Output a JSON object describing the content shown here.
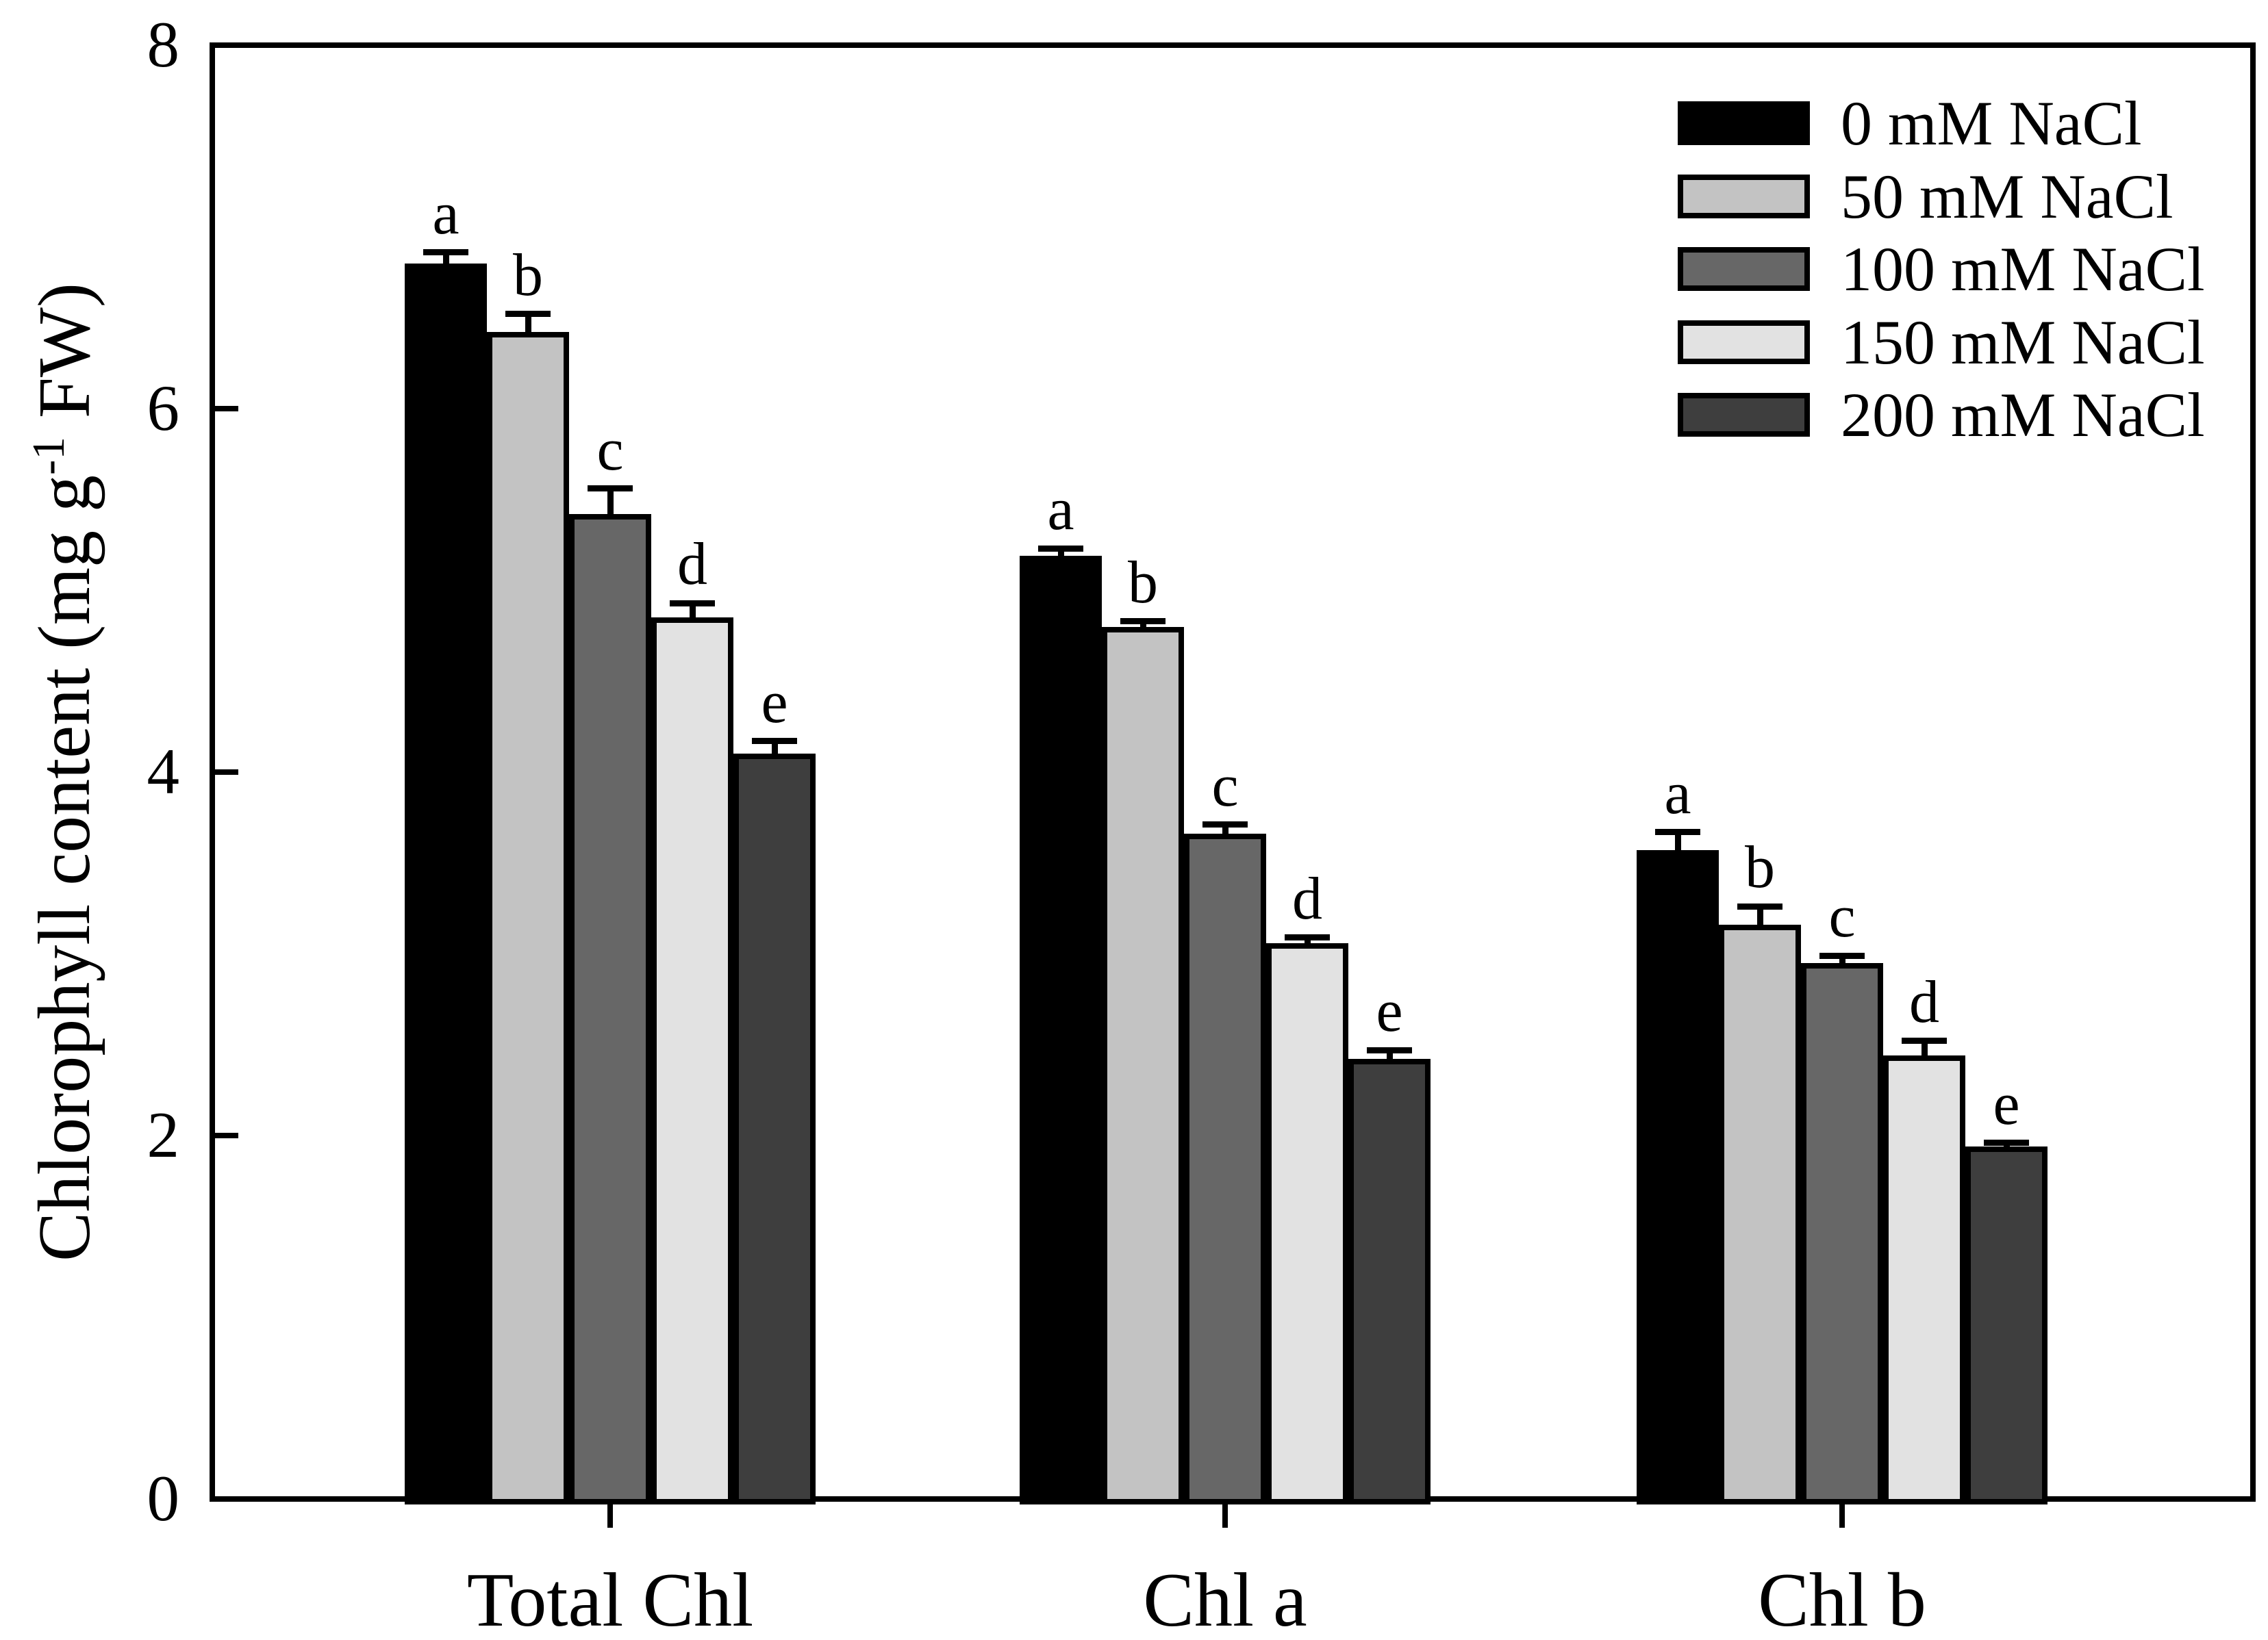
{
  "chart_data": {
    "type": "bar",
    "title": "",
    "categories": [
      "Total Chl",
      "Chl a",
      "Chl b"
    ],
    "series": [
      {
        "name": "0 mM NaCl",
        "color": "#000000",
        "values": [
          6.8,
          5.19,
          3.57
        ],
        "errors": [
          0.06,
          0.04,
          0.1
        ],
        "sig_letter": "a"
      },
      {
        "name": "50 mM NaCl",
        "color": "#c3c3c3",
        "values": [
          6.42,
          4.8,
          3.16
        ],
        "errors": [
          0.1,
          0.03,
          0.1
        ],
        "sig_letter": "b"
      },
      {
        "name": "100 mM NaCl",
        "color": "#676767",
        "values": [
          5.42,
          3.66,
          2.95
        ],
        "errors": [
          0.14,
          0.05,
          0.04
        ],
        "sig_letter": "c"
      },
      {
        "name": "150 mM NaCl",
        "color": "#e2e2e2",
        "values": [
          4.85,
          3.06,
          2.44
        ],
        "errors": [
          0.08,
          0.03,
          0.08
        ],
        "sig_letter": "d"
      },
      {
        "name": "200 mM NaCl",
        "color": "#3e3e3e",
        "values": [
          4.1,
          2.42,
          1.94
        ],
        "errors": [
          0.07,
          0.05,
          0.02
        ],
        "sig_letter": "e"
      }
    ],
    "ylabel": {
      "pre": "Chlorophyll content (mg g",
      "sup": "-1",
      "post": " FW)"
    },
    "xlabel": "",
    "ylim": [
      0,
      8
    ],
    "yticks": [
      0,
      2,
      4,
      6,
      8
    ],
    "inner_yticks": [
      2,
      4,
      6
    ],
    "grid": false,
    "legend_position": "top-right",
    "axis_color": "#000000",
    "error_bar_style": "upper-cap"
  }
}
